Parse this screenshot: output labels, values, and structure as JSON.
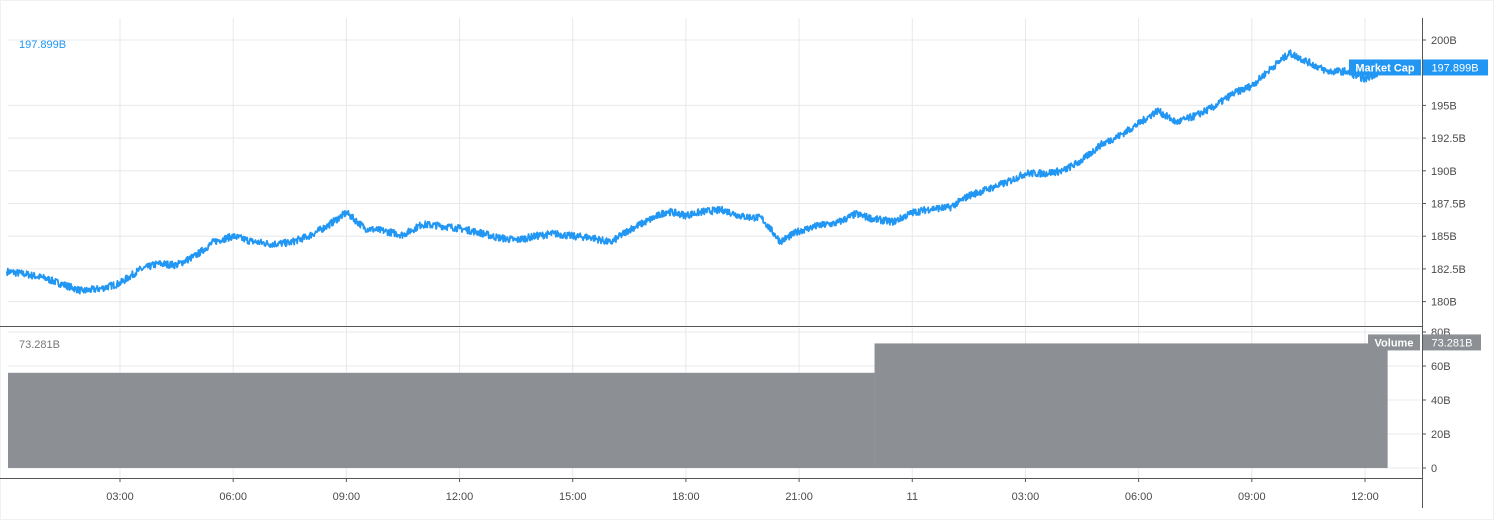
{
  "chart_data": [
    {
      "type": "line",
      "name_tag": "Market Cap",
      "current_value_label": "197.899B",
      "line_color": "#2196f3",
      "grid": true,
      "ylim": [
        179,
        202
      ],
      "y_ticks": [
        {
          "value": 180,
          "label": "180B"
        },
        {
          "value": 182.5,
          "label": "182.5B"
        },
        {
          "value": 185,
          "label": "185B"
        },
        {
          "value": 187.5,
          "label": "187.5B"
        },
        {
          "value": 190,
          "label": "190B"
        },
        {
          "value": 192.5,
          "label": "192.5B"
        },
        {
          "value": 195,
          "label": "195B"
        },
        {
          "value": 200,
          "label": "200B"
        }
      ],
      "x": [
        0.0,
        0.5,
        1.0,
        1.5,
        2.0,
        2.5,
        3.0,
        3.5,
        4.0,
        4.5,
        5.0,
        5.5,
        6.0,
        6.5,
        7.0,
        7.5,
        8.0,
        8.5,
        9.0,
        9.5,
        10.0,
        10.5,
        11.0,
        11.5,
        12.0,
        12.5,
        13.0,
        13.5,
        14.0,
        14.5,
        15.0,
        15.5,
        16.0,
        16.5,
        17.0,
        17.5,
        18.0,
        18.5,
        19.0,
        19.5,
        20.0,
        20.5,
        21.0,
        21.5,
        22.0,
        22.5,
        23.0,
        23.5,
        24.0,
        24.5,
        25.0,
        25.5,
        26.0,
        26.5,
        27.0,
        27.5,
        28.0,
        28.5,
        29.0,
        29.5,
        30.0,
        30.5,
        31.0,
        31.5,
        32.0,
        32.5,
        33.0,
        33.5,
        34.0,
        34.5,
        35.0,
        35.5,
        36.0,
        36.6
      ],
      "values": [
        182.3,
        182.1,
        181.8,
        181.3,
        180.8,
        181.0,
        181.4,
        182.4,
        182.9,
        182.8,
        183.5,
        184.6,
        185.0,
        184.6,
        184.4,
        184.5,
        185.0,
        185.8,
        186.8,
        185.6,
        185.4,
        185.1,
        185.9,
        185.8,
        185.6,
        185.3,
        184.9,
        184.7,
        185.0,
        185.2,
        185.0,
        184.9,
        184.5,
        185.5,
        186.2,
        186.9,
        186.6,
        186.9,
        187.0,
        186.5,
        186.4,
        184.6,
        185.4,
        185.8,
        186.0,
        186.7,
        186.3,
        186.1,
        186.8,
        187.1,
        187.2,
        188.1,
        188.6,
        189.1,
        189.8,
        189.8,
        190.0,
        190.8,
        192.0,
        192.7,
        193.6,
        194.6,
        193.7,
        194.2,
        194.9,
        195.9,
        196.5,
        197.8,
        199.0,
        198.3,
        197.6,
        197.6,
        197.0,
        197.9
      ]
    },
    {
      "type": "bar",
      "name_tag": "Volume",
      "current_value_label": "73.281B",
      "bar_color": "#8c8f94",
      "ylim": [
        -3,
        80
      ],
      "y_ticks": [
        {
          "value": 0,
          "label": "0"
        },
        {
          "value": 20,
          "label": "20B"
        },
        {
          "value": 40,
          "label": "40B"
        },
        {
          "value": 60,
          "label": "60B"
        },
        {
          "value": 80,
          "label": "80B"
        }
      ],
      "segments": [
        {
          "x_start": -1.0,
          "x_end": 23.0,
          "value": 56
        },
        {
          "x_start": 23.0,
          "x_end": 36.6,
          "value": 73.281
        }
      ]
    }
  ],
  "x_axis": {
    "ticks": [
      {
        "hour": 3,
        "label": "03:00"
      },
      {
        "hour": 6,
        "label": "06:00"
      },
      {
        "hour": 9,
        "label": "09:00"
      },
      {
        "hour": 12,
        "label": "12:00"
      },
      {
        "hour": 15,
        "label": "15:00"
      },
      {
        "hour": 18,
        "label": "18:00"
      },
      {
        "hour": 21,
        "label": "21:00"
      },
      {
        "hour": 24,
        "label": "11"
      },
      {
        "hour": 27,
        "label": "03:00"
      },
      {
        "hour": 30,
        "label": "06:00"
      },
      {
        "hour": 33,
        "label": "09:00"
      },
      {
        "hour": 36,
        "label": "12:00"
      }
    ]
  },
  "colors": {
    "grid": "#e6e8ec",
    "axis": "#555555",
    "volume_tag": "#8c8f94"
  }
}
